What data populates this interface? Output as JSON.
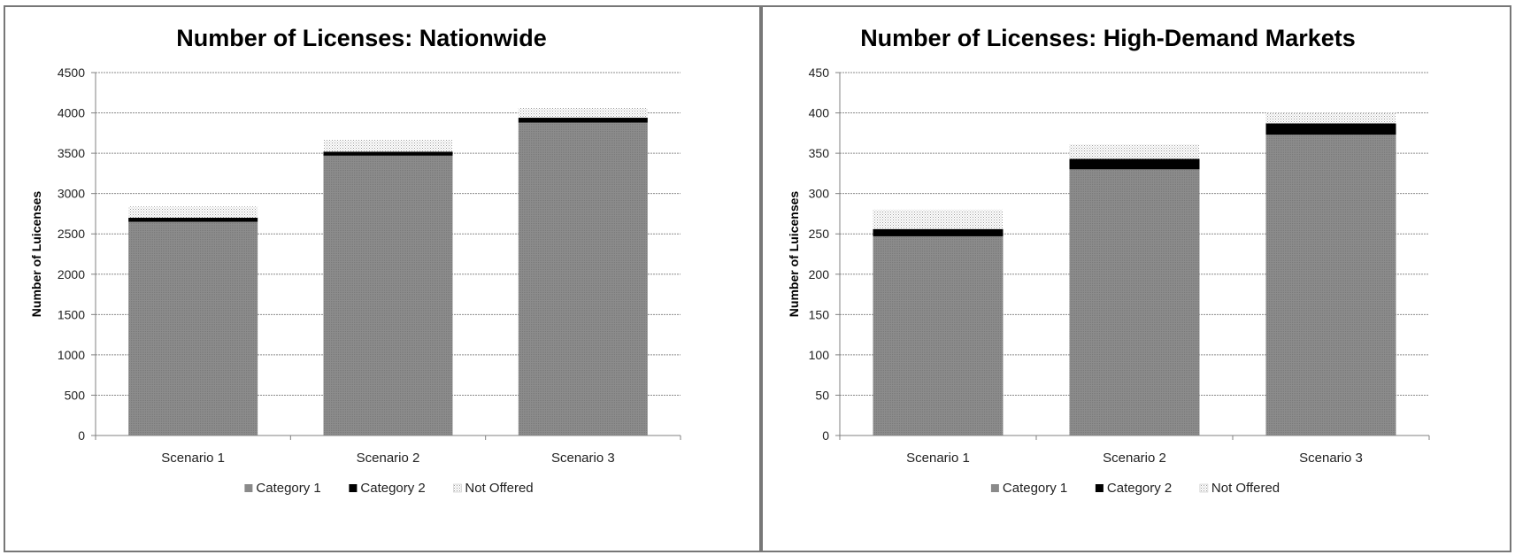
{
  "chart_data": [
    {
      "type": "bar",
      "stacked": true,
      "title": "Number of Licenses: Nationwide",
      "ylabel": "Number of Luicenses",
      "xlabel": "",
      "ylim": [
        0,
        4500
      ],
      "yticks": [
        0,
        500,
        1000,
        1500,
        2000,
        2500,
        3000,
        3500,
        4000,
        4500
      ],
      "categories": [
        "Scenario 1",
        "Scenario 2",
        "Scenario 3"
      ],
      "series": [
        {
          "name": "Category 1",
          "values": [
            2650,
            3470,
            3880
          ],
          "color": "#8a8a8a"
        },
        {
          "name": "Category 2",
          "values": [
            50,
            50,
            60
          ],
          "color": "#000000"
        },
        {
          "name": "Not Offered",
          "values": [
            140,
            145,
            125
          ],
          "color": "#d8d8d8"
        }
      ],
      "grid": true,
      "legend_position": "bottom"
    },
    {
      "type": "bar",
      "stacked": true,
      "title": "Number of Licenses: High-Demand Markets",
      "ylabel": "Number of Luicenses",
      "xlabel": "",
      "ylim": [
        0,
        450
      ],
      "yticks": [
        0,
        50,
        100,
        150,
        200,
        250,
        300,
        350,
        400,
        450
      ],
      "categories": [
        "Scenario 1",
        "Scenario 2",
        "Scenario 3"
      ],
      "series": [
        {
          "name": "Category 1",
          "values": [
            247,
            330,
            373
          ],
          "color": "#8a8a8a"
        },
        {
          "name": "Category 2",
          "values": [
            9,
            13,
            14
          ],
          "color": "#000000"
        },
        {
          "name": "Not Offered",
          "values": [
            24,
            18,
            13
          ],
          "color": "#d8d8d8"
        }
      ],
      "grid": true,
      "legend_position": "bottom"
    }
  ]
}
